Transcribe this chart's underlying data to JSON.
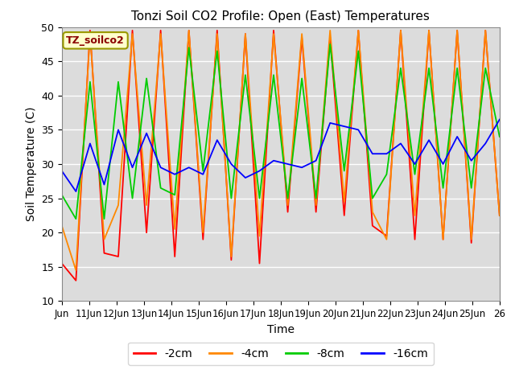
{
  "title": "Tonzi Soil CO2 Profile: Open (East) Temperatures",
  "xlabel": "Time",
  "ylabel": "Soil Temperature (C)",
  "ylim": [
    10,
    50
  ],
  "xlim": [
    0,
    16
  ],
  "legend_label": "TZ_soilco2",
  "xtick_labels": [
    "Jun",
    "11Jun",
    "12Jun",
    "13Jun",
    "14Jun",
    "15Jun",
    "16Jun",
    "17Jun",
    "18Jun",
    "19Jun",
    "20Jun",
    "21Jun",
    "22Jun",
    "23Jun",
    "24Jun",
    "25Jun",
    "26"
  ],
  "xtick_positions": [
    0,
    1,
    2,
    3,
    4,
    5,
    6,
    7,
    8,
    9,
    10,
    11,
    12,
    13,
    14,
    15,
    16
  ],
  "line_colors": [
    "red",
    "#FF8800",
    "#00CC00",
    "blue"
  ],
  "line_labels": [
    "-2cm",
    "-4cm",
    "-8cm",
    "-16cm"
  ],
  "background_color": "#DCDCDC",
  "yticks": [
    10,
    15,
    20,
    25,
    30,
    35,
    40,
    45,
    50
  ],
  "series": {
    "depth_2cm": [
      15.5,
      13.0,
      49.5,
      17.0,
      16.5,
      49.5,
      20.0,
      49.5,
      16.5,
      49.5,
      19.0,
      49.5,
      16.0,
      49.0,
      15.5,
      49.5,
      23.0,
      48.5,
      23.0,
      48.5,
      22.5,
      49.5,
      21.0,
      19.5,
      49.5,
      19.0,
      49.5,
      19.0,
      49.5,
      18.5,
      49.5,
      22.5
    ],
    "depth_4cm": [
      21.0,
      14.5,
      49.0,
      19.0,
      24.0,
      49.0,
      24.0,
      49.0,
      20.5,
      49.5,
      20.0,
      49.0,
      16.5,
      49.0,
      19.5,
      49.0,
      24.0,
      49.0,
      24.0,
      49.5,
      24.5,
      49.5,
      23.0,
      19.0,
      49.5,
      22.5,
      49.5,
      19.0,
      49.5,
      19.0,
      49.5,
      22.5
    ],
    "depth_8cm": [
      25.5,
      22.0,
      42.0,
      22.0,
      42.0,
      25.0,
      42.5,
      26.5,
      25.5,
      47.0,
      29.0,
      46.5,
      25.0,
      43.0,
      25.0,
      43.0,
      25.0,
      42.5,
      25.0,
      47.5,
      29.0,
      46.5,
      25.0,
      28.5,
      44.0,
      28.5,
      44.0,
      26.5,
      44.0,
      26.5,
      44.0,
      34.0
    ],
    "depth_16cm": [
      29.0,
      26.0,
      33.0,
      27.0,
      35.0,
      29.5,
      34.5,
      29.5,
      28.5,
      29.5,
      28.5,
      33.5,
      30.0,
      28.0,
      29.0,
      30.5,
      30.0,
      29.5,
      30.5,
      36.0,
      35.5,
      35.0,
      31.5,
      31.5,
      33.0,
      30.0,
      33.5,
      30.0,
      34.0,
      30.5,
      33.0,
      36.5
    ]
  }
}
